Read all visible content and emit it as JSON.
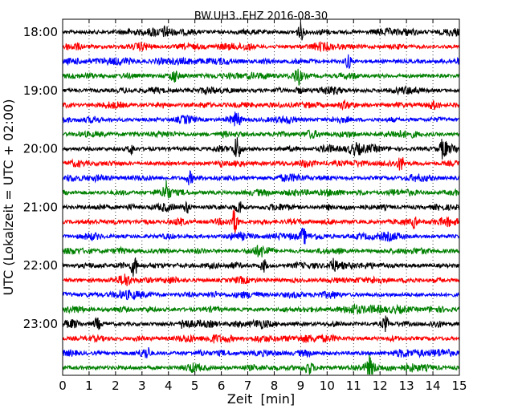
{
  "chart_data": {
    "type": "line",
    "title": "BW.UH3..EHZ 2016-08-30",
    "xlabel": "Zeit  [min]",
    "ylabel": "UTC (Lokalzeit = UTC + 02:00)",
    "xlim": [
      0,
      15
    ],
    "x_ticks": [
      "0",
      "1",
      "2",
      "3",
      "4",
      "5",
      "6",
      "7",
      "8",
      "9",
      "10",
      "11",
      "12",
      "13",
      "14",
      "15"
    ],
    "y_ticks": [
      {
        "label": "18:00",
        "trace": 0
      },
      {
        "label": "19:00",
        "trace": 4
      },
      {
        "label": "20:00",
        "trace": 8
      },
      {
        "label": "21:00",
        "trace": 12
      },
      {
        "label": "22:00",
        "trace": 16
      },
      {
        "label": "23:00",
        "trace": 20
      }
    ],
    "grid": "vertical dotted",
    "trace_minutes": 15,
    "trace_colors": [
      "#000000",
      "#ff0000",
      "#0000ff",
      "#008000"
    ],
    "trace_count": 24,
    "events": [
      {
        "trace": 0,
        "minute": 9.0,
        "amp": 2.2
      },
      {
        "trace": 0,
        "minute": 3.9,
        "amp": 1.5
      },
      {
        "trace": 2,
        "minute": 10.8,
        "amp": 1.8
      },
      {
        "trace": 3,
        "minute": 4.2,
        "amp": 1.6
      },
      {
        "trace": 3,
        "minute": 8.9,
        "amp": 2.0
      },
      {
        "trace": 6,
        "minute": 6.6,
        "amp": 1.6
      },
      {
        "trace": 8,
        "minute": 6.6,
        "amp": 3.0
      },
      {
        "trace": 8,
        "minute": 14.4,
        "amp": 2.5
      },
      {
        "trace": 8,
        "minute": 2.6,
        "amp": 1.3
      },
      {
        "trace": 9,
        "minute": 12.8,
        "amp": 1.8
      },
      {
        "trace": 10,
        "minute": 4.8,
        "amp": 1.6
      },
      {
        "trace": 11,
        "minute": 3.9,
        "amp": 3.0
      },
      {
        "trace": 12,
        "minute": 6.7,
        "amp": 1.8
      },
      {
        "trace": 12,
        "minute": 4.7,
        "amp": 1.4
      },
      {
        "trace": 13,
        "minute": 6.5,
        "amp": 3.0
      },
      {
        "trace": 13,
        "minute": 13.3,
        "amp": 1.4
      },
      {
        "trace": 14,
        "minute": 9.1,
        "amp": 2.0
      },
      {
        "trace": 16,
        "minute": 2.7,
        "amp": 3.0
      },
      {
        "trace": 16,
        "minute": 7.6,
        "amp": 1.6
      },
      {
        "trace": 16,
        "minute": 10.2,
        "amp": 1.4
      },
      {
        "trace": 17,
        "minute": 2.4,
        "amp": 1.2
      },
      {
        "trace": 20,
        "minute": 12.2,
        "amp": 2.0
      },
      {
        "trace": 20,
        "minute": 4.6,
        "amp": 1.4
      },
      {
        "trace": 20,
        "minute": 1.3,
        "amp": 1.2
      },
      {
        "trace": 22,
        "minute": 3.2,
        "amp": 1.4
      },
      {
        "trace": 23,
        "minute": 11.6,
        "amp": 3.0
      },
      {
        "trace": 23,
        "minute": 9.3,
        "amp": 1.4
      }
    ]
  }
}
